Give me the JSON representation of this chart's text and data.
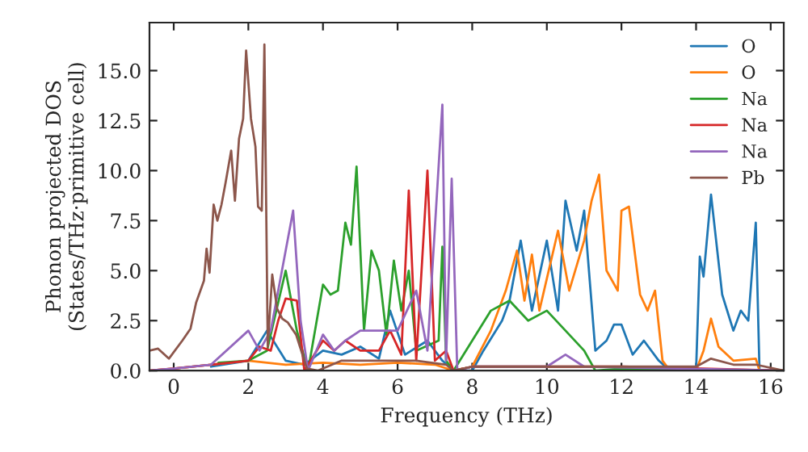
{
  "chart_data": {
    "type": "line",
    "xlabel": "Frequency (THz)",
    "ylabel": "Phonon projected DOS\n(States/THz·primitive cell)",
    "xlim": [
      -0.65,
      16.35
    ],
    "ylim": [
      0,
      17.4
    ],
    "xticks": [
      0,
      2,
      4,
      6,
      8,
      10,
      12,
      14,
      16
    ],
    "yticks": [
      {
        "value": 0,
        "label": "0.0"
      },
      {
        "value": 2.5,
        "label": "2.5"
      },
      {
        "value": 5,
        "label": "5.0"
      },
      {
        "value": 7.5,
        "label": "7.5"
      },
      {
        "value": 10,
        "label": "10.0"
      },
      {
        "value": 12.5,
        "label": "12.5"
      },
      {
        "value": 15,
        "label": "15.0"
      }
    ],
    "legend": "top right",
    "grid": false,
    "marker": "none",
    "line_style": "solid",
    "series": [
      {
        "name": "O",
        "color": "#1f77b4",
        "x": [
          1,
          2,
          2.5,
          3,
          3.5,
          4,
          4.5,
          5,
          5.5,
          5.8,
          6.2,
          6.8,
          7.2,
          7.5,
          8,
          8.3,
          8.8,
          9,
          9.3,
          9.6,
          10,
          10.3,
          10.5,
          10.8,
          11,
          11.3,
          11.6,
          11.8,
          12,
          12.3,
          12.6,
          13,
          13.3,
          14,
          14.1,
          14.2,
          14.4,
          14.7,
          15,
          15.2,
          15.4,
          15.6,
          15.7,
          16.35
        ],
        "values": [
          0.2,
          0.5,
          2.0,
          0.5,
          0.3,
          1.0,
          0.8,
          1.2,
          0.6,
          3.0,
          0.8,
          1.5,
          0.5,
          0,
          0,
          1.0,
          2.5,
          3.5,
          6.5,
          3.0,
          6.5,
          3.0,
          8.5,
          6.0,
          8.0,
          1.0,
          1.5,
          2.3,
          2.3,
          0.8,
          1.5,
          0.5,
          0,
          0,
          5.7,
          4.7,
          8.8,
          3.8,
          2.0,
          3.0,
          2.5,
          7.4,
          0,
          0
        ]
      },
      {
        "name": "O",
        "color": "#ff7f0e",
        "x": [
          -0.65,
          0,
          2,
          3,
          4,
          5,
          6,
          7,
          7.5,
          8,
          8.5,
          8.9,
          9.2,
          9.4,
          9.6,
          9.8,
          10.3,
          10.6,
          11,
          11.2,
          11.4,
          11.6,
          11.9,
          12,
          12.2,
          12.5,
          12.7,
          12.9,
          13.1,
          13.3,
          14,
          14.2,
          14.4,
          14.6,
          15,
          15.6,
          15.7,
          16.35
        ],
        "values": [
          0,
          0.1,
          0.5,
          0.3,
          0.4,
          0.3,
          0.4,
          0.3,
          0,
          0.2,
          2.0,
          4.0,
          6.0,
          3.5,
          5.8,
          3.0,
          7.0,
          4.0,
          6.5,
          8.5,
          9.8,
          5.0,
          4.0,
          8.0,
          8.2,
          3.8,
          3.0,
          4.0,
          0.5,
          0,
          0,
          1.0,
          2.6,
          1.2,
          0.5,
          0.6,
          0,
          0
        ]
      },
      {
        "name": "Na",
        "color": "#2ca02c",
        "x": [
          1.2,
          2,
          2.5,
          3.0,
          3.3,
          3.6,
          4.0,
          4.2,
          4.4,
          4.6,
          4.75,
          4.9,
          5.1,
          5.3,
          5.5,
          5.7,
          5.9,
          6.1,
          6.3,
          6.5,
          7.1,
          7.2,
          7.3,
          7.5,
          8,
          8.5,
          9,
          9.5,
          10,
          10.5,
          11,
          11.3,
          12,
          16.35
        ],
        "values": [
          0.4,
          0.5,
          1.0,
          5.0,
          2.0,
          0,
          4.3,
          3.8,
          4.0,
          7.4,
          6.3,
          10.2,
          2.0,
          6.0,
          5.0,
          1.8,
          5.5,
          3.0,
          5.0,
          1.0,
          1.5,
          6.2,
          0.5,
          0,
          1.5,
          3.0,
          3.5,
          2.5,
          3.0,
          2.0,
          1.0,
          0,
          0.1,
          0
        ]
      },
      {
        "name": "Na",
        "color": "#d62728",
        "x": [
          -0.65,
          0,
          1,
          2,
          2.3,
          2.6,
          2.8,
          3.0,
          3.3,
          3.5,
          4.0,
          4.3,
          4.6,
          5.0,
          5.5,
          5.8,
          6.1,
          6.3,
          6.5,
          6.8,
          7.0,
          7.3,
          7.5,
          8,
          12,
          16.35
        ],
        "values": [
          0,
          0.1,
          0.3,
          0.5,
          1.2,
          1.0,
          2.5,
          3.6,
          3.5,
          0,
          1.5,
          1.0,
          1.5,
          1.0,
          1.0,
          2.0,
          0.8,
          9.0,
          0.5,
          10.0,
          0.5,
          1.0,
          0,
          0.2,
          0.2,
          0
        ]
      },
      {
        "name": "Na",
        "color": "#9467bd",
        "x": [
          -0.65,
          0,
          1,
          2,
          2.3,
          2.6,
          3.2,
          3.4,
          3.6,
          4.0,
          4.3,
          4.6,
          5.0,
          6.0,
          6.5,
          6.8,
          7.2,
          7.3,
          7.45,
          7.6,
          8,
          10,
          10.5,
          11,
          16.35
        ],
        "values": [
          0,
          0.1,
          0.3,
          2.0,
          1.0,
          2.0,
          8.0,
          2.5,
          0,
          1.8,
          1.0,
          1.5,
          2.0,
          2.0,
          4.0,
          1.0,
          13.3,
          0.5,
          9.6,
          0,
          0.2,
          0.2,
          0.8,
          0.2,
          0
        ]
      },
      {
        "name": "Pb",
        "color": "#8c564b",
        "x": [
          -0.65,
          -0.42,
          -0.13,
          0.23,
          0.45,
          0.6,
          0.81,
          0.88,
          0.96,
          1.07,
          1.17,
          1.28,
          1.39,
          1.54,
          1.64,
          1.75,
          1.86,
          1.94,
          2.07,
          2.19,
          2.26,
          2.36,
          2.43,
          2.52,
          2.64,
          2.77,
          2.91,
          3.06,
          3.28,
          3.57,
          3.86,
          4.5,
          5.5,
          6.5,
          7.3,
          7.5,
          8,
          10,
          14,
          14.4,
          15,
          15.6,
          16.35
        ],
        "values": [
          1.0,
          1.1,
          0.6,
          1.5,
          2.1,
          3.4,
          4.5,
          6.1,
          4.9,
          8.3,
          7.5,
          8.3,
          9.4,
          11.0,
          8.5,
          11.6,
          12.6,
          16.0,
          12.6,
          11.2,
          8.2,
          8.0,
          16.3,
          1.2,
          4.8,
          3.1,
          2.6,
          2.4,
          1.8,
          0.1,
          0,
          0.5,
          0.5,
          0.5,
          0.3,
          0,
          0.2,
          0.2,
          0.2,
          0.6,
          0.3,
          0.3,
          0
        ]
      }
    ]
  }
}
